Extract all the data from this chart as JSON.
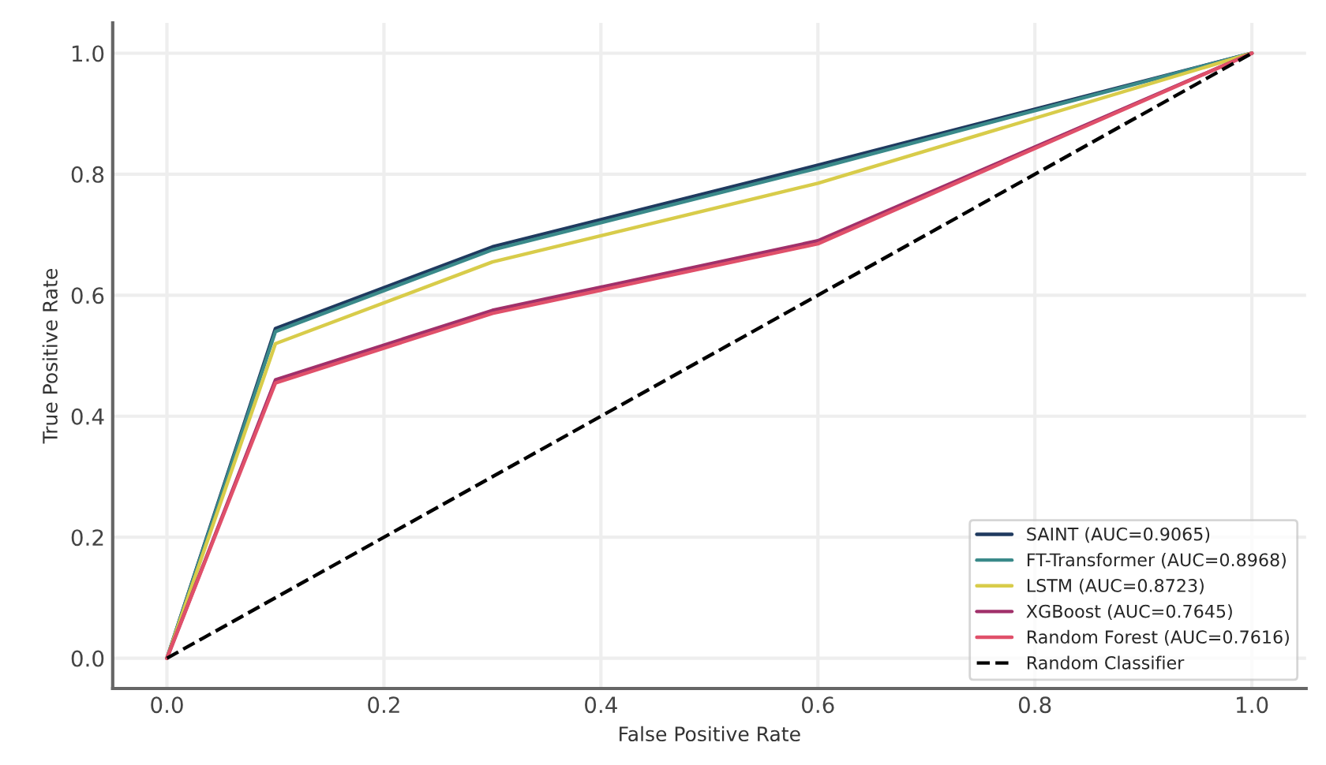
{
  "chart_data": {
    "type": "line",
    "xlabel": "False Positive Rate",
    "ylabel": "True Positive Rate",
    "x": [
      0.0,
      0.1,
      0.3,
      0.6,
      1.0
    ],
    "series": [
      {
        "name": "SAINT (AUC=0.9065)",
        "color": "#1f3a5f",
        "values": [
          0.0,
          0.545,
          0.68,
          0.815,
          1.0
        ]
      },
      {
        "name": "FT-Transformer (AUC=0.8968)",
        "color": "#3a8a8a",
        "values": [
          0.0,
          0.54,
          0.675,
          0.81,
          1.0
        ]
      },
      {
        "name": "LSTM (AUC=0.8723)",
        "color": "#d8cc4a",
        "values": [
          0.0,
          0.52,
          0.655,
          0.785,
          1.0
        ]
      },
      {
        "name": "XGBoost (AUC=0.7645)",
        "color": "#a0306a",
        "values": [
          0.0,
          0.46,
          0.575,
          0.69,
          1.0
        ]
      },
      {
        "name": "Random Forest (AUC=0.7616)",
        "color": "#e0506a",
        "values": [
          0.0,
          0.455,
          0.57,
          0.685,
          1.0
        ]
      },
      {
        "name": "Random Classifier",
        "color": "#000000",
        "line_style": "dashed",
        "x": [
          0.0,
          1.0
        ],
        "values": [
          0.0,
          1.0
        ]
      }
    ],
    "xlim": [
      -0.05,
      1.05
    ],
    "ylim": [
      -0.05,
      1.05
    ],
    "xticks": [
      {
        "value": 0.0,
        "label": "0.0"
      },
      0.2,
      0.4,
      0.6,
      0.8,
      {
        "value": 1.0,
        "label": "1.0"
      }
    ],
    "yticks": [
      {
        "value": 0.0,
        "label": "0.0"
      },
      0.2,
      0.4,
      0.6,
      0.8,
      {
        "value": 1.0,
        "label": "1.0"
      }
    ],
    "grid": true,
    "legend": "bottom right",
    "line_style": "solid"
  }
}
